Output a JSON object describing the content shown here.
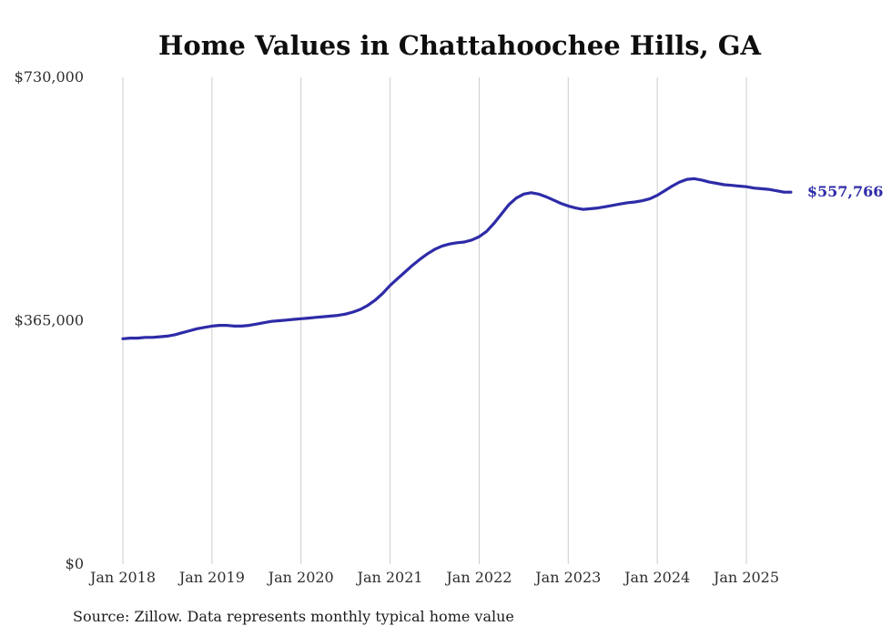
{
  "chart": {
    "title": "Home Values in Chattahoochee Hills, GA",
    "source_note": "Source: Zillow. Data represents monthly typical home value",
    "latest_value_label": "$557,766",
    "colors": {
      "line": "#2e2ba8",
      "grid": "#cccccc",
      "title_text": "#0e0e0e",
      "tick_text": "#2e2e2e",
      "source_text": "#1c1c1c"
    },
    "y_axis": {
      "ticks": [
        {
          "label": "$0",
          "value": 0
        },
        {
          "label": "$365,000",
          "value": 365000
        },
        {
          "label": "$730,000",
          "value": 730000
        }
      ]
    },
    "x_axis": {
      "ticks": [
        {
          "label": "Jan 2018",
          "month_index": 0
        },
        {
          "label": "Jan 2019",
          "month_index": 12
        },
        {
          "label": "Jan 2020",
          "month_index": 24
        },
        {
          "label": "Jan 2021",
          "month_index": 36
        },
        {
          "label": "Jan 2022",
          "month_index": 48
        },
        {
          "label": "Jan 2023",
          "month_index": 60
        },
        {
          "label": "Jan 2024",
          "month_index": 72
        },
        {
          "label": "Jan 2025",
          "month_index": 84
        }
      ]
    }
  },
  "chart_data": {
    "type": "line",
    "title": "Home Values in Chattahoochee Hills, GA",
    "xlabel": "",
    "ylabel": "",
    "ylim": [
      0,
      730000
    ],
    "x_frequency": "monthly",
    "grid": "vertical-yearly",
    "legend": false,
    "x": [
      "2018-01",
      "2018-02",
      "2018-03",
      "2018-04",
      "2018-05",
      "2018-06",
      "2018-07",
      "2018-08",
      "2018-09",
      "2018-10",
      "2018-11",
      "2018-12",
      "2019-01",
      "2019-02",
      "2019-03",
      "2019-04",
      "2019-05",
      "2019-06",
      "2019-07",
      "2019-08",
      "2019-09",
      "2019-10",
      "2019-11",
      "2019-12",
      "2020-01",
      "2020-02",
      "2020-03",
      "2020-04",
      "2020-05",
      "2020-06",
      "2020-07",
      "2020-08",
      "2020-09",
      "2020-10",
      "2020-11",
      "2020-12",
      "2021-01",
      "2021-02",
      "2021-03",
      "2021-04",
      "2021-05",
      "2021-06",
      "2021-07",
      "2021-08",
      "2021-09",
      "2021-10",
      "2021-11",
      "2021-12",
      "2022-01",
      "2022-02",
      "2022-03",
      "2022-04",
      "2022-05",
      "2022-06",
      "2022-07",
      "2022-08",
      "2022-09",
      "2022-10",
      "2022-11",
      "2022-12",
      "2023-01",
      "2023-02",
      "2023-03",
      "2023-04",
      "2023-05",
      "2023-06",
      "2023-07",
      "2023-08",
      "2023-09",
      "2023-10",
      "2023-11",
      "2023-12",
      "2024-01",
      "2024-02",
      "2024-03",
      "2024-04",
      "2024-05",
      "2024-06",
      "2024-07",
      "2024-08",
      "2024-09",
      "2024-10",
      "2024-11",
      "2024-12",
      "2025-01",
      "2025-02",
      "2025-03",
      "2025-04",
      "2025-05",
      "2025-06",
      "2025-07"
    ],
    "series": [
      {
        "name": "Typical home value",
        "values": [
          338000,
          339000,
          339000,
          340000,
          340000,
          341000,
          342000,
          344000,
          347000,
          350000,
          353000,
          355000,
          357000,
          358000,
          358000,
          357000,
          357000,
          358000,
          360000,
          362000,
          364000,
          365000,
          366000,
          367000,
          368000,
          369000,
          370000,
          371000,
          372000,
          373000,
          375000,
          378000,
          382000,
          388000,
          396000,
          406000,
          418000,
          428000,
          438000,
          448000,
          457000,
          465000,
          472000,
          477000,
          480000,
          482000,
          483000,
          486000,
          491000,
          499000,
          511000,
          525000,
          539000,
          549000,
          555000,
          557000,
          555000,
          551000,
          546000,
          541000,
          537000,
          534000,
          532000,
          533000,
          534000,
          536000,
          538000,
          540000,
          542000,
          543000,
          545000,
          548000,
          553000,
          560000,
          567000,
          573000,
          577000,
          578000,
          576000,
          573000,
          571000,
          569000,
          568000,
          567000,
          566000,
          564000,
          563000,
          562000,
          560000,
          558000,
          557766
        ]
      }
    ],
    "annotations": [
      {
        "text": "$557,766",
        "x": "2025-07",
        "y": 557766
      }
    ]
  }
}
